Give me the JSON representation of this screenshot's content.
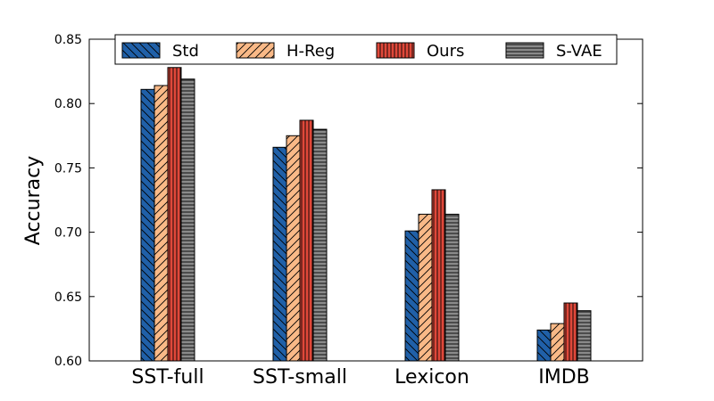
{
  "chart_data": {
    "type": "bar",
    "title": "",
    "xlabel": "",
    "ylabel": "Accuracy",
    "ylim": [
      0.6,
      0.85
    ],
    "yticks": [
      "0.60",
      "0.65",
      "0.70",
      "0.75",
      "0.80",
      "0.85"
    ],
    "grid": false,
    "legend_position": "top",
    "categories": [
      "SST-full",
      "SST-small",
      "Lexicon",
      "IMDB"
    ],
    "series": [
      {
        "name": "Std",
        "color": "#2060a8",
        "hatch": "backslash",
        "values": [
          0.811,
          0.766,
          0.701,
          0.624
        ]
      },
      {
        "name": "H-Reg",
        "color": "#f9b987",
        "hatch": "slash",
        "values": [
          0.814,
          0.775,
          0.714,
          0.629
        ]
      },
      {
        "name": "Ours",
        "color": "#e0483a",
        "hatch": "vertical",
        "values": [
          0.828,
          0.787,
          0.733,
          0.645
        ]
      },
      {
        "name": "S-VAE",
        "color": "#8a8a8a",
        "hatch": "horizontal",
        "values": [
          0.819,
          0.78,
          0.714,
          0.639
        ]
      }
    ]
  }
}
